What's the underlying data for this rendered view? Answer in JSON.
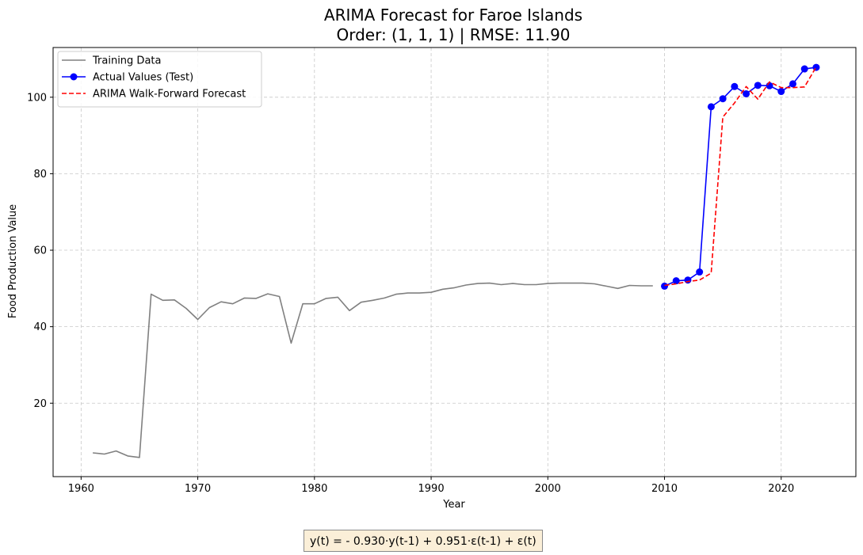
{
  "chart_data": {
    "type": "line",
    "title": [
      "ARIMA Forecast for Faroe Islands",
      "Order: (1, 1, 1) | RMSE: 11.90"
    ],
    "xlabel": "Year",
    "ylabel": "Food Production Value",
    "xlim": [
      1957.6,
      2026.4
    ],
    "ylim": [
      0.8,
      113.0
    ],
    "xticks": [
      1960,
      1970,
      1980,
      1990,
      2000,
      2010,
      2020
    ],
    "yticks": [
      20,
      40,
      60,
      80,
      100
    ],
    "grid": true,
    "legend_position": "top-left",
    "series": [
      {
        "name": "Training Data",
        "color": "#808080",
        "style": "solid",
        "marker": "none",
        "x": [
          1961,
          1962,
          1963,
          1964,
          1965,
          1966,
          1967,
          1968,
          1969,
          1970,
          1971,
          1972,
          1973,
          1974,
          1975,
          1976,
          1977,
          1978,
          1979,
          1980,
          1981,
          1982,
          1983,
          1984,
          1985,
          1986,
          1987,
          1988,
          1989,
          1990,
          1991,
          1992,
          1993,
          1994,
          1995,
          1996,
          1997,
          1998,
          1999,
          2000,
          2001,
          2002,
          2003,
          2004,
          2005,
          2006,
          2007,
          2008,
          2009
        ],
        "values": [
          7.0,
          6.7,
          7.5,
          6.2,
          5.8,
          48.5,
          46.9,
          47.0,
          44.8,
          41.9,
          45.0,
          46.5,
          46.0,
          47.5,
          47.4,
          48.6,
          47.9,
          35.7,
          46.0,
          46.0,
          47.4,
          47.7,
          44.2,
          46.4,
          46.9,
          47.5,
          48.5,
          48.8,
          48.8,
          49.0,
          49.8,
          50.2,
          50.9,
          51.3,
          51.4,
          51.0,
          51.3,
          51.0,
          51.0,
          51.3,
          51.4,
          51.4,
          51.4,
          51.2,
          50.6,
          50.0,
          50.8,
          50.7,
          50.7
        ]
      },
      {
        "name": "Actual Values (Test)",
        "color": "#0000ff",
        "style": "solid",
        "marker": "circle",
        "x": [
          2010,
          2011,
          2012,
          2013,
          2014,
          2015,
          2016,
          2017,
          2018,
          2019,
          2020,
          2021,
          2022,
          2023
        ],
        "values": [
          50.6,
          52.0,
          52.2,
          54.3,
          97.5,
          99.6,
          102.8,
          100.9,
          103.1,
          103.0,
          101.5,
          103.5,
          107.4,
          107.8
        ]
      },
      {
        "name": "ARIMA Walk-Forward Forecast",
        "color": "#ff0000",
        "style": "dashed",
        "marker": "none",
        "x": [
          2010,
          2011,
          2012,
          2013,
          2014,
          2015,
          2016,
          2017,
          2018,
          2019,
          2020,
          2021,
          2022,
          2023
        ],
        "values": [
          50.8,
          51.2,
          51.8,
          52.2,
          54.0,
          94.8,
          98.5,
          102.8,
          99.5,
          104.0,
          102.5,
          102.5,
          102.7,
          107.9
        ]
      }
    ]
  },
  "formula": "y(t) = - 0.930·y(t-1) + 0.951·ε(t-1) + ε(t)"
}
